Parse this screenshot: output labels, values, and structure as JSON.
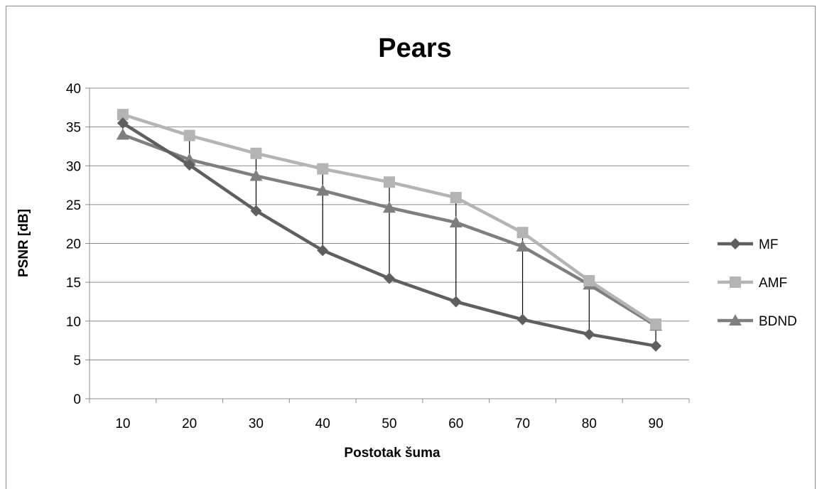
{
  "chart_data": {
    "type": "line",
    "title": "Pears",
    "xlabel": "Postotak šuma",
    "ylabel": "PSNR [dB]",
    "categories": [
      "10",
      "20",
      "30",
      "40",
      "50",
      "60",
      "70",
      "80",
      "90"
    ],
    "ylim": [
      0,
      40
    ],
    "yticks": [
      "0",
      "5",
      "10",
      "15",
      "20",
      "25",
      "30",
      "35",
      "40"
    ],
    "grid": true,
    "legend_position": "right",
    "high_low_lines": true,
    "series": [
      {
        "name": "MF",
        "marker": "diamond",
        "color": "#5f5f5f",
        "values": [
          35.5,
          30.1,
          24.2,
          19.1,
          15.5,
          12.5,
          10.2,
          8.3,
          6.8
        ]
      },
      {
        "name": "AMF",
        "marker": "square",
        "color": "#b4b4b4",
        "values": [
          36.6,
          33.9,
          31.6,
          29.6,
          27.9,
          25.9,
          21.4,
          15.2,
          9.6
        ]
      },
      {
        "name": "BDND",
        "marker": "triangle",
        "color": "#7f7f7f",
        "values": [
          34.0,
          30.8,
          28.7,
          26.8,
          24.6,
          22.7,
          19.6,
          14.7,
          9.4
        ]
      }
    ]
  }
}
